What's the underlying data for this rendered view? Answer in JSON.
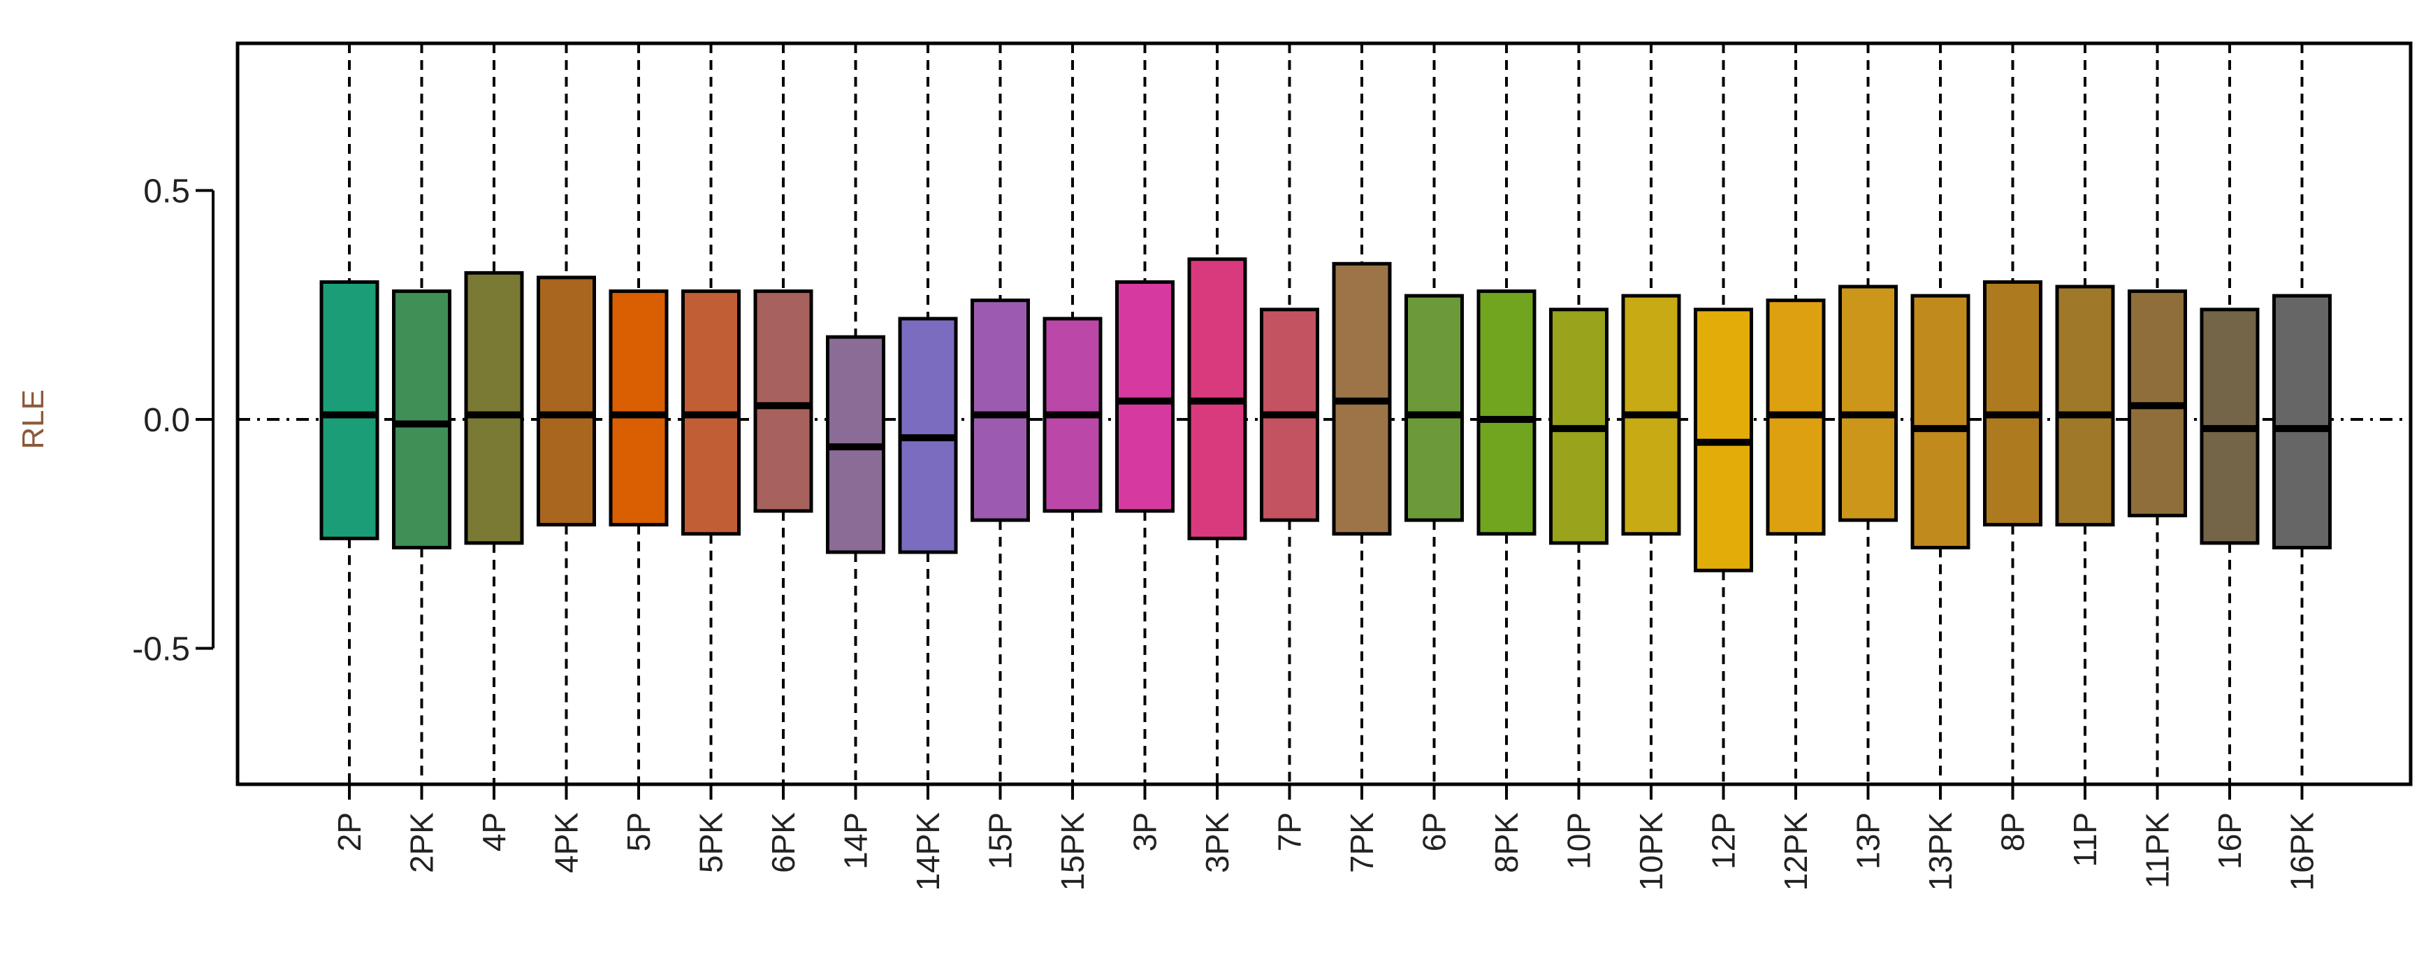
{
  "chart_data": {
    "type": "boxplot",
    "title": "",
    "xlabel": "",
    "ylabel": "RLE",
    "ylim": [
      -0.8,
      0.8
    ],
    "yticks": [
      -0.5,
      0.0,
      0.5
    ],
    "ytick_labels": [
      "-0.5",
      "0.0",
      "0.5"
    ],
    "reference_line": 0.0,
    "grid": false,
    "legend": "none",
    "series": [
      {
        "name": "2P",
        "color": "#1b9e77",
        "q1": -0.26,
        "median": 0.01,
        "q3": 0.3
      },
      {
        "name": "2PK",
        "color": "#3f8f57",
        "q1": -0.28,
        "median": -0.01,
        "q3": 0.28
      },
      {
        "name": "4P",
        "color": "#7a7a35",
        "q1": -0.27,
        "median": 0.01,
        "q3": 0.32
      },
      {
        "name": "4PK",
        "color": "#a9661f",
        "q1": -0.23,
        "median": 0.01,
        "q3": 0.31
      },
      {
        "name": "5P",
        "color": "#d95f02",
        "q1": -0.23,
        "median": 0.01,
        "q3": 0.28
      },
      {
        "name": "5PK",
        "color": "#c25e35",
        "q1": -0.25,
        "median": 0.01,
        "q3": 0.28
      },
      {
        "name": "6PK",
        "color": "#a8625d",
        "q1": -0.2,
        "median": 0.03,
        "q3": 0.28
      },
      {
        "name": "14P",
        "color": "#8a6c96",
        "q1": -0.29,
        "median": -0.06,
        "q3": 0.18
      },
      {
        "name": "14PK",
        "color": "#7b6cc0",
        "q1": -0.29,
        "median": -0.04,
        "q3": 0.22
      },
      {
        "name": "15P",
        "color": "#9d5bb0",
        "q1": -0.22,
        "median": 0.01,
        "q3": 0.26
      },
      {
        "name": "15PK",
        "color": "#bb47a8",
        "q1": -0.2,
        "median": 0.01,
        "q3": 0.22
      },
      {
        "name": "3P",
        "color": "#d63aa0",
        "q1": -0.2,
        "median": 0.04,
        "q3": 0.3
      },
      {
        "name": "3PK",
        "color": "#d93a7d",
        "q1": -0.26,
        "median": 0.04,
        "q3": 0.35
      },
      {
        "name": "7P",
        "color": "#c35361",
        "q1": -0.22,
        "median": 0.01,
        "q3": 0.24
      },
      {
        "name": "7PK",
        "color": "#9c7447",
        "q1": -0.25,
        "median": 0.04,
        "q3": 0.34
      },
      {
        "name": "6P",
        "color": "#6d9a38",
        "q1": -0.22,
        "median": 0.01,
        "q3": 0.27
      },
      {
        "name": "8PK",
        "color": "#72a51f",
        "q1": -0.25,
        "median": 0.0,
        "q3": 0.28
      },
      {
        "name": "10P",
        "color": "#99a31b",
        "q1": -0.27,
        "median": -0.02,
        "q3": 0.24
      },
      {
        "name": "10PK",
        "color": "#c7aa14",
        "q1": -0.25,
        "median": 0.01,
        "q3": 0.27
      },
      {
        "name": "12P",
        "color": "#e2ac09",
        "q1": -0.33,
        "median": -0.05,
        "q3": 0.24
      },
      {
        "name": "12PK",
        "color": "#dda010",
        "q1": -0.25,
        "median": 0.01,
        "q3": 0.26
      },
      {
        "name": "13P",
        "color": "#cc961a",
        "q1": -0.22,
        "median": 0.01,
        "q3": 0.29
      },
      {
        "name": "13PK",
        "color": "#c08a1c",
        "q1": -0.28,
        "median": -0.02,
        "q3": 0.27
      },
      {
        "name": "8P",
        "color": "#ad7a1f",
        "q1": -0.23,
        "median": 0.01,
        "q3": 0.3
      },
      {
        "name": "11P",
        "color": "#a0782a",
        "q1": -0.23,
        "median": 0.01,
        "q3": 0.29
      },
      {
        "name": "11PK",
        "color": "#8f6e3a",
        "q1": -0.21,
        "median": 0.03,
        "q3": 0.28
      },
      {
        "name": "16P",
        "color": "#756548",
        "q1": -0.27,
        "median": -0.02,
        "q3": 0.24
      },
      {
        "name": "16PK",
        "color": "#666666",
        "q1": -0.28,
        "median": -0.02,
        "q3": 0.27
      }
    ]
  }
}
